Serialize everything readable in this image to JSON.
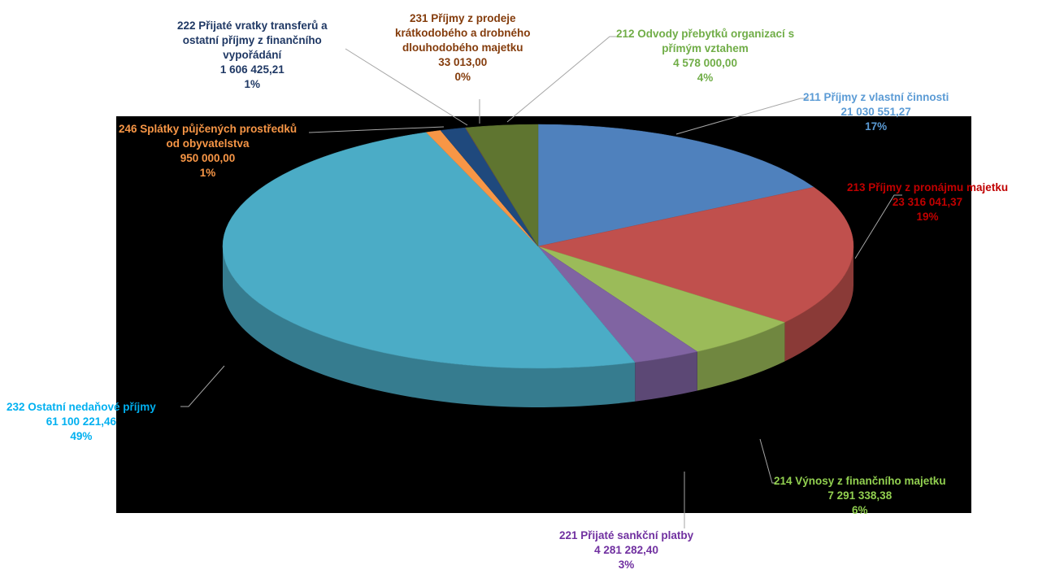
{
  "chart_data": {
    "type": "pie",
    "title": "",
    "slices": [
      {
        "category": "211 Příjmy z vlastní činnosti",
        "amount": "21 030 551,27",
        "value": 21030551.27,
        "percent": "17%",
        "color": "#4f81bd",
        "label_color": "#5b9bd5"
      },
      {
        "category": "213 Příjmy z pronájmu majetku",
        "amount": "23 316 041,37",
        "value": 23316041.37,
        "percent": "19%",
        "color": "#c0504d",
        "label_color": "#c00000"
      },
      {
        "category": "214 Výnosy z finančního majetku",
        "amount": "7 291 338,38",
        "value": 7291338.38,
        "percent": "6%",
        "color": "#9bbb59",
        "label_color": "#92d050"
      },
      {
        "category": "221 Přijaté sankční platby",
        "amount": "4 281 282,40",
        "value": 4281282.4,
        "percent": "3%",
        "color": "#8064a2",
        "label_color": "#7030a0"
      },
      {
        "category": "232 Ostatní nedaňové příjmy",
        "amount": "61 100 221,46",
        "value": 61100221.46,
        "percent": "49%",
        "color": "#4bacc6",
        "label_color": "#00b0f0"
      },
      {
        "category": "246 Splátky půjčených prostředků od obyvatelstva",
        "amount": "950 000,00",
        "value": 950000.0,
        "percent": "1%",
        "color": "#f79646",
        "label_color": "#f79646"
      },
      {
        "category": "222 Přijaté vratky transferů a ostatní příjmy z finančního vypořádání",
        "amount": "1 606 425,21",
        "value": 1606425.21,
        "percent": "1%",
        "color": "#1f497d",
        "label_color": "#1f3864"
      },
      {
        "category": "231 Příjmy z prodeje krátkodobého a drobného dlouhodobého majetku",
        "amount": "33 013,00",
        "value": 33013.0,
        "percent": "0%",
        "color": "#7f4f4f",
        "label_color": "#843c0c"
      },
      {
        "category": "212 Odvody přebytků organizací s přímým vztahem",
        "amount": "4 578 000,00",
        "value": 4578000.0,
        "percent": "4%",
        "color": "#5f7530",
        "label_color": "#70ad47"
      }
    ]
  },
  "labels": {
    "l211": {
      "line1": "211 Příjmy z vlastní činnosti",
      "amount": "21 030 551,27",
      "percent": "17%"
    },
    "l213": {
      "line1": "213 Příjmy z pronájmu majetku",
      "amount": "23 316 041,37",
      "percent": "19%"
    },
    "l214": {
      "line1": "214 Výnosy z finančního majetku",
      "amount": "7 291 338,38",
      "percent": "6%"
    },
    "l221": {
      "line1": "221 Přijaté sankční platby",
      "amount": "4 281 282,40",
      "percent": "3%"
    },
    "l232": {
      "line1": "232 Ostatní nedaňové příjmy",
      "amount": "61 100 221,46",
      "percent": "49%"
    },
    "l246": {
      "line1": "246 Splátky půjčených prostředků",
      "line2": "od obyvatelstva",
      "amount": "950 000,00",
      "percent": "1%"
    },
    "l222": {
      "line1": "222 Přijaté vratky transferů a",
      "line2": "ostatní příjmy z finančního",
      "line3": "vypořádání",
      "amount": "1 606 425,21",
      "percent": "1%"
    },
    "l231": {
      "line1": "231 Příjmy z prodeje",
      "line2": "krátkodobého a drobného",
      "line3": "dlouhodobého majetku",
      "amount": "33 013,00",
      "percent": "0%"
    },
    "l212": {
      "line1": "212 Odvody přebytků organizací s",
      "line2": "přímým vztahem",
      "amount": "4 578 000,00",
      "percent": "4%"
    }
  }
}
